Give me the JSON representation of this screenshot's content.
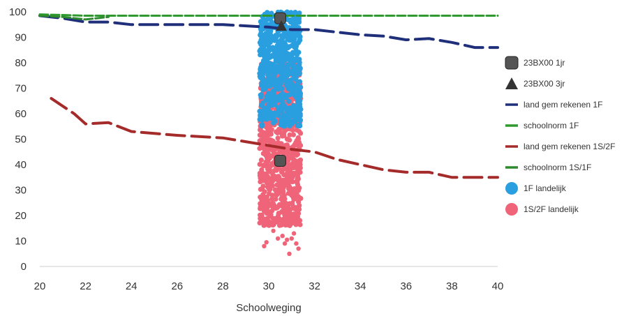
{
  "chart_data": {
    "type": "scatter",
    "xlabel": "Schoolweging",
    "xlim": [
      20,
      40
    ],
    "ylim": [
      0,
      100
    ],
    "xticks": [
      "20",
      "22",
      "24",
      "26",
      "28",
      "30",
      "32",
      "34",
      "36",
      "38",
      "40"
    ],
    "yticks": [
      "0",
      "10",
      "20",
      "30",
      "40",
      "50",
      "60",
      "70",
      "80",
      "90",
      "100"
    ],
    "grid": false,
    "legend_position": "right",
    "series": [
      {
        "name": "23BX00 1jr",
        "kind": "marker-square",
        "color": "#555555",
        "points": [
          [
            30.5,
            97.5
          ],
          [
            30.5,
            41.5
          ]
        ]
      },
      {
        "name": "23BX00 3jr",
        "kind": "marker-triangle",
        "color": "#333333",
        "points": [
          [
            30.55,
            94.5
          ]
        ]
      },
      {
        "name": "land gem rekenen 1F",
        "kind": "dashed-line",
        "color": "#1f2f7a",
        "points": [
          [
            20,
            98.5
          ],
          [
            21,
            97.5
          ],
          [
            22,
            96
          ],
          [
            23,
            96
          ],
          [
            24,
            95
          ],
          [
            26,
            95
          ],
          [
            28,
            95
          ],
          [
            30,
            94
          ],
          [
            31,
            93
          ],
          [
            32,
            93
          ],
          [
            33,
            92
          ],
          [
            34,
            91
          ],
          [
            35,
            90.5
          ],
          [
            36,
            89
          ],
          [
            37,
            89.5
          ],
          [
            38,
            88
          ],
          [
            39,
            86
          ],
          [
            40,
            86
          ]
        ]
      },
      {
        "name": "schoolnorm 1F",
        "kind": "dashed-line",
        "color": "#2e9a2e",
        "points": [
          [
            20,
            99
          ],
          [
            22,
            98.5
          ],
          [
            26,
            98.5
          ],
          [
            30,
            98.5
          ],
          [
            34,
            98.5
          ],
          [
            40,
            98.5
          ]
        ]
      },
      {
        "name": "land gem rekenen 1S/2F",
        "kind": "dashed-line",
        "color": "#a52a2a",
        "points": [
          [
            20.5,
            66
          ],
          [
            21.5,
            60
          ],
          [
            22,
            56
          ],
          [
            23,
            56.5
          ],
          [
            24,
            53
          ],
          [
            26,
            51.5
          ],
          [
            28,
            50.5
          ],
          [
            30,
            47.5
          ],
          [
            31,
            46
          ],
          [
            32,
            45
          ],
          [
            33,
            42
          ],
          [
            34,
            40
          ],
          [
            35,
            38
          ],
          [
            36,
            37
          ],
          [
            37,
            37
          ],
          [
            38,
            35
          ],
          [
            39,
            35
          ],
          [
            40,
            35
          ]
        ]
      },
      {
        "name": "schoolnorm 1S/1F",
        "kind": "dashed-line",
        "color": "#2e8a2e",
        "points": [
          [
            20,
            98.5
          ],
          [
            21,
            98
          ],
          [
            22,
            97
          ],
          [
            23,
            98
          ]
        ]
      },
      {
        "name": "1F landelijk",
        "kind": "scatter-cloud",
        "color": "#2a9fe0",
        "x_range": [
          29.6,
          31.4
        ],
        "y_range": [
          55,
          100
        ]
      },
      {
        "name": "1S/2F landelijk",
        "kind": "scatter-cloud",
        "color": "#ef6478",
        "x_range": [
          29.6,
          31.4
        ],
        "y_range": [
          16,
          80
        ],
        "outliers": [
          [
            29.8,
            8
          ],
          [
            29.9,
            9.5
          ],
          [
            30.2,
            14
          ],
          [
            30.6,
            12
          ],
          [
            30.7,
            9
          ],
          [
            30.8,
            10.5
          ],
          [
            30.9,
            5
          ],
          [
            31.0,
            11
          ],
          [
            31.1,
            13
          ],
          [
            31.2,
            9
          ],
          [
            31.3,
            7
          ],
          [
            30.4,
            11
          ]
        ]
      }
    ]
  }
}
